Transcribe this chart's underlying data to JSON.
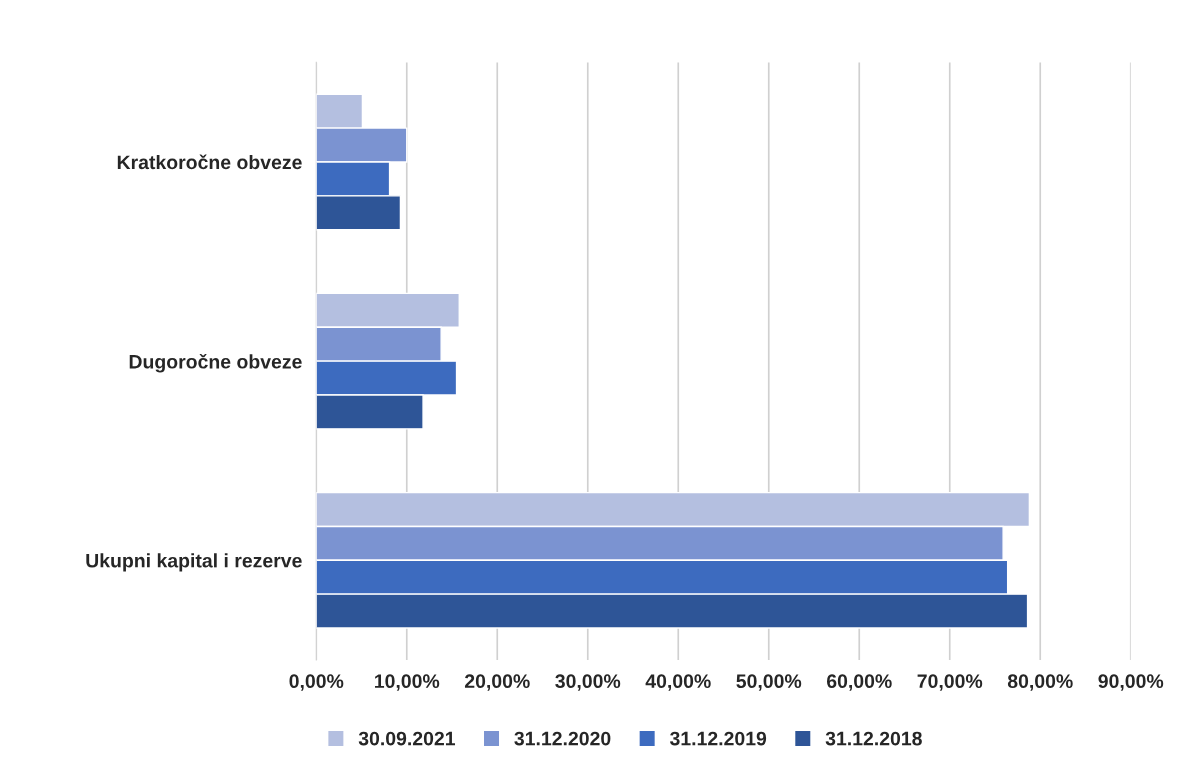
{
  "chart_data": {
    "type": "bar",
    "orientation": "horizontal",
    "categories": [
      "Kratkoročne obveze",
      "Dugoročne obveze",
      "Ukupni kapital i rezerve"
    ],
    "series": [
      {
        "name": "30.09.2021",
        "color": "#b4bfe0",
        "values": [
          5.1,
          15.8,
          78.8
        ]
      },
      {
        "name": "31.12.2020",
        "color": "#7b93d1",
        "values": [
          10.0,
          13.8,
          75.9
        ]
      },
      {
        "name": "31.12.2019",
        "color": "#3d6bbf",
        "values": [
          8.1,
          15.5,
          76.4
        ]
      },
      {
        "name": "31.12.2018",
        "color": "#2e5597",
        "values": [
          9.3,
          11.8,
          78.6
        ]
      }
    ],
    "xlim": [
      0,
      90
    ],
    "xticks": [
      {
        "value": 0,
        "label": "0,00%"
      },
      {
        "value": 10,
        "label": "10,00%"
      },
      {
        "value": 20,
        "label": "20,00%"
      },
      {
        "value": 30,
        "label": "30,00%"
      },
      {
        "value": 40,
        "label": "40,00%"
      },
      {
        "value": 50,
        "label": "50,00%"
      },
      {
        "value": 60,
        "label": "60,00%"
      },
      {
        "value": 70,
        "label": "70,00%"
      },
      {
        "value": 80,
        "label": "80,00%"
      },
      {
        "value": 90,
        "label": "90,00%"
      }
    ],
    "grid": "x",
    "legend": "bottom"
  }
}
